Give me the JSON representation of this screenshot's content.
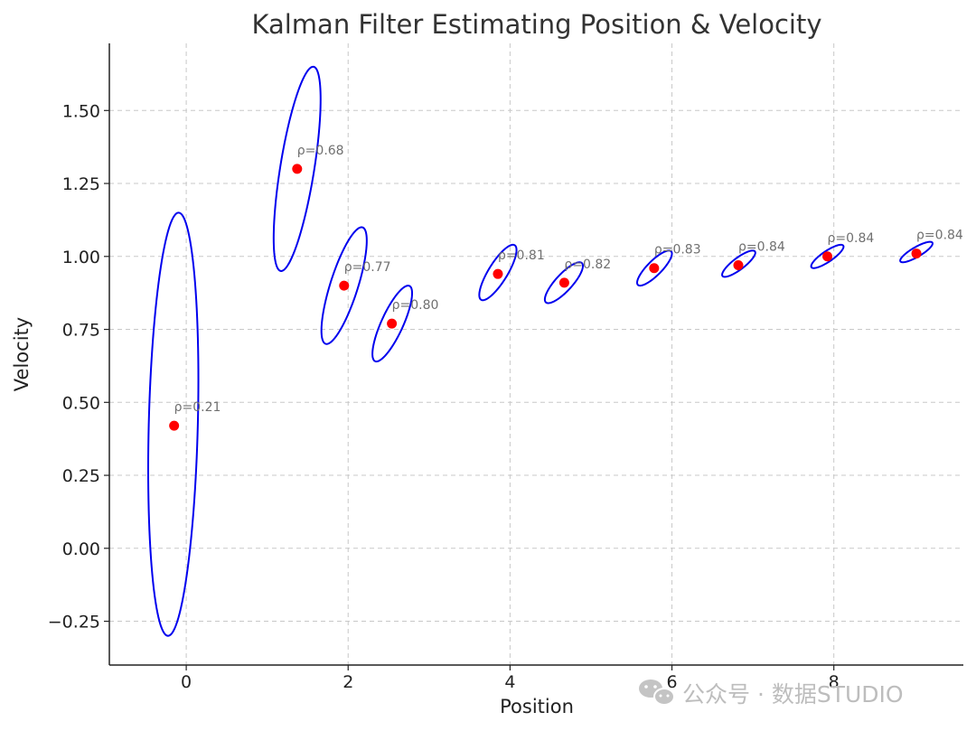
{
  "chart_data": {
    "type": "scatter",
    "title": "Kalman Filter Estimating Position & Velocity",
    "xlabel": "Position",
    "ylabel": "Velocity",
    "xlim": [
      -0.95,
      9.6
    ],
    "ylim": [
      -0.4,
      1.73
    ],
    "xticks": [
      0,
      2,
      4,
      6,
      8
    ],
    "xtick_labels": [
      "0",
      "2",
      "4",
      "6",
      "8"
    ],
    "yticks": [
      -0.25,
      0.0,
      0.25,
      0.5,
      0.75,
      1.0,
      1.25,
      1.5
    ],
    "ytick_labels": [
      "−0.25",
      "0.00",
      "0.25",
      "0.50",
      "0.75",
      "1.00",
      "1.25",
      "1.50"
    ],
    "grid": true,
    "point_color": "#ff0000",
    "ellipse_color": "#0000ee",
    "estimates": [
      {
        "x": -0.15,
        "y": 0.42,
        "rho": 0.21,
        "label": "ρ=0.21",
        "ellipse": {
          "x_extent": [
            -0.47,
            0.15
          ],
          "y_extent": [
            -0.3,
            1.15
          ]
        }
      },
      {
        "x": 1.37,
        "y": 1.3,
        "rho": 0.68,
        "label": "ρ=0.68",
        "ellipse": {
          "x_extent": [
            1.08,
            1.66
          ],
          "y_extent": [
            0.95,
            1.65
          ]
        }
      },
      {
        "x": 1.95,
        "y": 0.9,
        "rho": 0.77,
        "label": "ρ=0.77",
        "ellipse": {
          "x_extent": [
            1.67,
            2.23
          ],
          "y_extent": [
            0.7,
            1.1
          ]
        }
      },
      {
        "x": 2.54,
        "y": 0.77,
        "rho": 0.8,
        "label": "ρ=0.80",
        "ellipse": {
          "x_extent": [
            2.3,
            2.79
          ],
          "y_extent": [
            0.64,
            0.9
          ]
        }
      },
      {
        "x": 3.85,
        "y": 0.94,
        "rho": 0.81,
        "label": "ρ=0.81",
        "ellipse": {
          "x_extent": [
            3.62,
            4.08
          ],
          "y_extent": [
            0.85,
            1.04
          ]
        }
      },
      {
        "x": 4.67,
        "y": 0.91,
        "rho": 0.82,
        "label": "ρ=0.82",
        "ellipse": {
          "x_extent": [
            4.43,
            4.9
          ],
          "y_extent": [
            0.84,
            0.98
          ]
        }
      },
      {
        "x": 5.78,
        "y": 0.96,
        "rho": 0.83,
        "label": "ρ=0.83",
        "ellipse": {
          "x_extent": [
            5.57,
            6.0
          ],
          "y_extent": [
            0.9,
            1.02
          ]
        }
      },
      {
        "x": 6.82,
        "y": 0.97,
        "rho": 0.84,
        "label": "ρ=0.84",
        "ellipse": {
          "x_extent": [
            6.62,
            7.03
          ],
          "y_extent": [
            0.93,
            1.02
          ]
        }
      },
      {
        "x": 7.92,
        "y": 1.0,
        "rho": 0.84,
        "label": "ρ=0.84",
        "ellipse": {
          "x_extent": [
            7.72,
            8.12
          ],
          "y_extent": [
            0.96,
            1.04
          ]
        }
      },
      {
        "x": 9.02,
        "y": 1.01,
        "rho": 0.84,
        "label": "ρ=0.84",
        "ellipse": {
          "x_extent": [
            8.82,
            9.22
          ],
          "y_extent": [
            0.98,
            1.05
          ]
        }
      }
    ]
  },
  "watermark": {
    "text": "公众号 · 数据STUDIO",
    "icon": "wechat-icon"
  }
}
